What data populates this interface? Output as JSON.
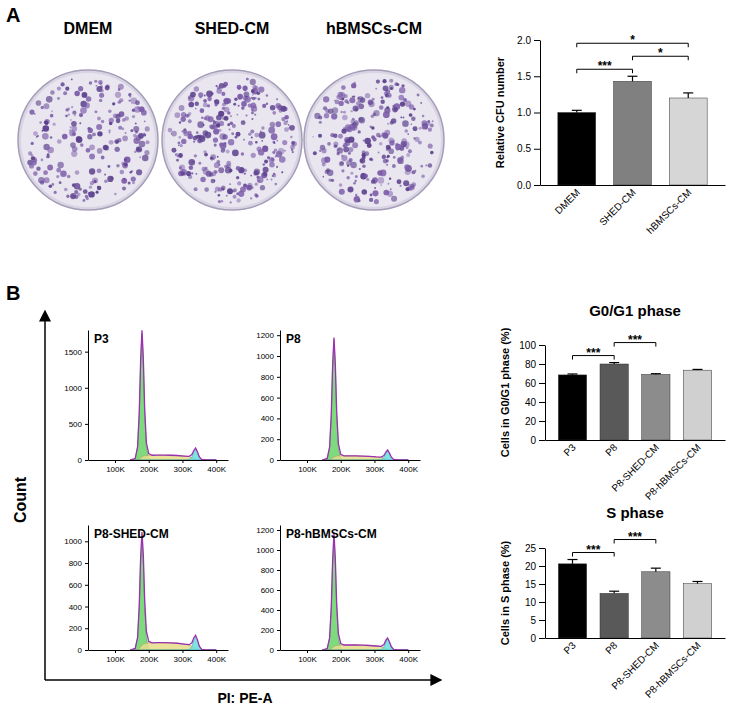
{
  "figure": {
    "panel_labels": [
      "A",
      "B"
    ],
    "plate_labels": [
      "DMEM",
      "SHED-CM",
      "hBMSCs-CM"
    ],
    "y_label": "Count",
    "x_label": "PI: PE-A"
  },
  "chart_data": [
    {
      "type": "bar",
      "y_label": "Relative CFU number",
      "categories": [
        "DMEM",
        "SHED-CM",
        "hBMSCs-CM"
      ],
      "values": [
        1.0,
        1.43,
        1.2
      ],
      "errors": [
        0.03,
        0.07,
        0.07
      ],
      "colors": [
        "#000000",
        "#808080",
        "#d6d6d6"
      ],
      "ylim": [
        0,
        2.0
      ],
      "yticks": [
        {
          "value": 0,
          "label": "0.0"
        },
        {
          "value": 0.5,
          "label": "0.5"
        },
        {
          "value": 1.0,
          "label": "1.0"
        },
        {
          "value": 1.5,
          "label": "1.5"
        },
        {
          "value": 2.0,
          "label": "2.0"
        }
      ],
      "significance": [
        {
          "between": [
            "DMEM",
            "SHED-CM"
          ],
          "label": "***"
        },
        {
          "between": [
            "SHED-CM",
            "hBMSCs-CM"
          ],
          "label": "*"
        },
        {
          "between": [
            "DMEM",
            "hBMSCs-CM"
          ],
          "label": "*"
        }
      ]
    },
    {
      "type": "area",
      "title": "P3",
      "x": [
        145000,
        160000,
        167000,
        172000,
        176000,
        180000,
        184000,
        188000,
        193000,
        200000,
        210000,
        225000,
        245000,
        265000,
        285000,
        305000,
        320000,
        328000,
        334000,
        339000,
        344000,
        350000,
        357000,
        370000,
        400000
      ],
      "series": [
        {
          "type": "area",
          "color": "#66d466",
          "values": [
            0,
            20,
            180,
            650,
            1350,
            1750,
            1350,
            650,
            180,
            25,
            0,
            0,
            0,
            0,
            0,
            0,
            0,
            0,
            0,
            0,
            0,
            0,
            0,
            0,
            0
          ]
        },
        {
          "type": "area",
          "color": "#e6dc8a",
          "values": [
            0,
            0,
            5,
            15,
            30,
            45,
            55,
            60,
            62,
            64,
            66,
            68,
            68,
            66,
            62,
            55,
            45,
            35,
            25,
            15,
            8,
            3,
            0,
            0,
            0
          ]
        },
        {
          "type": "area",
          "color": "#66dede",
          "values": [
            0,
            0,
            0,
            0,
            0,
            0,
            0,
            0,
            0,
            0,
            0,
            0,
            0,
            0,
            0,
            0,
            5,
            40,
            110,
            150,
            110,
            40,
            8,
            0,
            0
          ]
        },
        {
          "type": "line",
          "color": "#9b30b0",
          "values": [
            0,
            20,
            185,
            665,
            1380,
            1795,
            1405,
            710,
            242,
            89,
            66,
            68,
            68,
            66,
            62,
            55,
            50,
            75,
            135,
            165,
            118,
            43,
            8,
            0,
            0
          ]
        }
      ],
      "xlim": [
        20000,
        435000
      ],
      "xticks": [
        {
          "value": 100000,
          "label": "100K"
        },
        {
          "value": 200000,
          "label": "200K"
        },
        {
          "value": 300000,
          "label": "300K"
        },
        {
          "value": 400000,
          "label": "400K"
        }
      ],
      "ylim": [
        0,
        1800
      ],
      "yticks": [
        0,
        500,
        1000,
        1500
      ]
    },
    {
      "type": "area",
      "title": "P8",
      "x": [
        145000,
        160000,
        167000,
        172000,
        176000,
        180000,
        184000,
        188000,
        193000,
        200000,
        210000,
        225000,
        245000,
        265000,
        285000,
        305000,
        320000,
        328000,
        334000,
        339000,
        344000,
        350000,
        357000,
        370000,
        400000
      ],
      "series": [
        {
          "type": "area",
          "color": "#66d466",
          "values": [
            0,
            15,
            120,
            430,
            890,
            1150,
            890,
            430,
            120,
            15,
            0,
            0,
            0,
            0,
            0,
            0,
            0,
            0,
            0,
            0,
            0,
            0,
            0,
            0,
            0
          ]
        },
        {
          "type": "area",
          "color": "#e6dc8a",
          "values": [
            0,
            0,
            3,
            10,
            20,
            28,
            34,
            38,
            40,
            40,
            40,
            40,
            40,
            38,
            35,
            30,
            25,
            18,
            12,
            8,
            4,
            2,
            0,
            0,
            0
          ]
        },
        {
          "type": "area",
          "color": "#66dede",
          "values": [
            0,
            0,
            0,
            0,
            0,
            0,
            0,
            0,
            0,
            0,
            0,
            0,
            0,
            0,
            0,
            0,
            3,
            25,
            65,
            90,
            65,
            25,
            5,
            0,
            0
          ]
        },
        {
          "type": "line",
          "color": "#9b30b0",
          "values": [
            0,
            15,
            123,
            440,
            910,
            1178,
            924,
            468,
            160,
            55,
            40,
            40,
            40,
            38,
            35,
            30,
            28,
            43,
            77,
            98,
            69,
            27,
            5,
            0,
            0
          ]
        }
      ],
      "xlim": [
        20000,
        435000
      ],
      "xticks": [
        {
          "value": 100000,
          "label": "100K"
        },
        {
          "value": 200000,
          "label": "200K"
        },
        {
          "value": 300000,
          "label": "300K"
        },
        {
          "value": 400000,
          "label": "400K"
        }
      ],
      "ylim": [
        0,
        1250
      ],
      "yticks": [
        0,
        200,
        400,
        600,
        800,
        1000,
        1200
      ]
    },
    {
      "type": "area",
      "title": "P8-SHED-CM",
      "x": [
        145000,
        160000,
        167000,
        172000,
        176000,
        180000,
        184000,
        188000,
        193000,
        200000,
        210000,
        225000,
        245000,
        265000,
        285000,
        305000,
        320000,
        328000,
        334000,
        339000,
        344000,
        350000,
        357000,
        370000,
        400000
      ],
      "series": [
        {
          "type": "area",
          "color": "#66d466",
          "values": [
            0,
            14,
            110,
            400,
            820,
            1040,
            820,
            400,
            110,
            14,
            0,
            0,
            0,
            0,
            0,
            0,
            0,
            0,
            0,
            0,
            0,
            0,
            0,
            0,
            0
          ]
        },
        {
          "type": "area",
          "color": "#e6dc8a",
          "values": [
            0,
            0,
            5,
            15,
            30,
            45,
            55,
            60,
            63,
            65,
            66,
            67,
            67,
            66,
            62,
            55,
            45,
            35,
            25,
            15,
            8,
            3,
            0,
            0,
            0
          ]
        },
        {
          "type": "area",
          "color": "#66dede",
          "values": [
            0,
            0,
            0,
            0,
            0,
            0,
            0,
            0,
            0,
            0,
            0,
            0,
            0,
            0,
            0,
            0,
            4,
            32,
            90,
            120,
            90,
            32,
            6,
            0,
            0
          ]
        },
        {
          "type": "line",
          "color": "#9b30b0",
          "values": [
            0,
            14,
            115,
            415,
            850,
            1085,
            875,
            460,
            173,
            79,
            66,
            67,
            67,
            66,
            62,
            55,
            49,
            67,
            115,
            135,
            98,
            35,
            6,
            0,
            0
          ]
        }
      ],
      "xlim": [
        20000,
        435000
      ],
      "xticks": [
        {
          "value": 100000,
          "label": "100K"
        },
        {
          "value": 200000,
          "label": "200K"
        },
        {
          "value": 300000,
          "label": "300K"
        },
        {
          "value": 400000,
          "label": "400K"
        }
      ],
      "ylim": [
        0,
        1150
      ],
      "yticks": [
        0,
        200,
        400,
        600,
        800,
        1000
      ]
    },
    {
      "type": "area",
      "title": "P8-hBMSCs-CM",
      "x": [
        145000,
        160000,
        167000,
        172000,
        176000,
        180000,
        184000,
        188000,
        193000,
        200000,
        210000,
        225000,
        245000,
        265000,
        285000,
        305000,
        320000,
        328000,
        334000,
        339000,
        344000,
        350000,
        357000,
        370000,
        400000
      ],
      "series": [
        {
          "type": "area",
          "color": "#66d466",
          "values": [
            0,
            15,
            118,
            420,
            870,
            1130,
            870,
            420,
            118,
            15,
            0,
            0,
            0,
            0,
            0,
            0,
            0,
            0,
            0,
            0,
            0,
            0,
            0,
            0,
            0
          ]
        },
        {
          "type": "area",
          "color": "#e6dc8a",
          "values": [
            0,
            0,
            4,
            12,
            24,
            35,
            42,
            46,
            48,
            50,
            50,
            50,
            50,
            48,
            45,
            40,
            33,
            25,
            18,
            10,
            5,
            2,
            0,
            0,
            0
          ]
        },
        {
          "type": "area",
          "color": "#66dede",
          "values": [
            0,
            0,
            0,
            0,
            0,
            0,
            0,
            0,
            0,
            0,
            0,
            0,
            0,
            0,
            0,
            0,
            4,
            30,
            80,
            110,
            80,
            30,
            6,
            0,
            0
          ]
        },
        {
          "type": "line",
          "color": "#9b30b0",
          "values": [
            0,
            15,
            122,
            432,
            894,
            1165,
            912,
            466,
            166,
            65,
            50,
            50,
            50,
            48,
            45,
            40,
            37,
            55,
            98,
            120,
            85,
            32,
            6,
            0,
            0
          ]
        }
      ],
      "xlim": [
        20000,
        435000
      ],
      "xticks": [
        {
          "value": 100000,
          "label": "100K"
        },
        {
          "value": 200000,
          "label": "200K"
        },
        {
          "value": 300000,
          "label": "300K"
        },
        {
          "value": 400000,
          "label": "400K"
        }
      ],
      "ylim": [
        0,
        1250
      ],
      "yticks": [
        0,
        200,
        400,
        600,
        800,
        1000,
        1200
      ]
    },
    {
      "type": "bar",
      "title": "G0/G1 phase",
      "y_label": "Cells in G0/G1 phase (%)",
      "categories": [
        "P3",
        "P8",
        "P8-SHED-CM",
        "P8-hBMSCs-CM"
      ],
      "values": [
        68.5,
        80.0,
        69.0,
        73.5
      ],
      "errors": [
        1.0,
        1.5,
        0.8,
        0.8
      ],
      "colors": [
        "#000000",
        "#595959",
        "#8c8c8c",
        "#d0d0d0"
      ],
      "ylim": [
        0,
        100
      ],
      "yticks": [
        0,
        20,
        40,
        60,
        80,
        100
      ],
      "significance": [
        {
          "between": [
            "P3",
            "P8"
          ],
          "label": "***"
        },
        {
          "between": [
            "P8",
            "P8-SHED-CM"
          ],
          "label": "***"
        }
      ]
    },
    {
      "type": "bar",
      "title": "S phase",
      "y_label": "Cells in S phase (%)",
      "categories": [
        "P3",
        "P8",
        "P8-SHED-CM",
        "P8-hBMSCs-CM"
      ],
      "values": [
        20.6,
        12.4,
        18.4,
        15.1
      ],
      "errors": [
        1.2,
        0.6,
        1.0,
        0.6
      ],
      "colors": [
        "#000000",
        "#595959",
        "#8c8c8c",
        "#d0d0d0"
      ],
      "ylim": [
        0,
        25
      ],
      "yticks": [
        0,
        5,
        10,
        15,
        20,
        25
      ],
      "significance": [
        {
          "between": [
            "P3",
            "P8"
          ],
          "label": "***"
        },
        {
          "between": [
            "P8",
            "P8-SHED-CM"
          ],
          "label": "***"
        }
      ]
    }
  ]
}
